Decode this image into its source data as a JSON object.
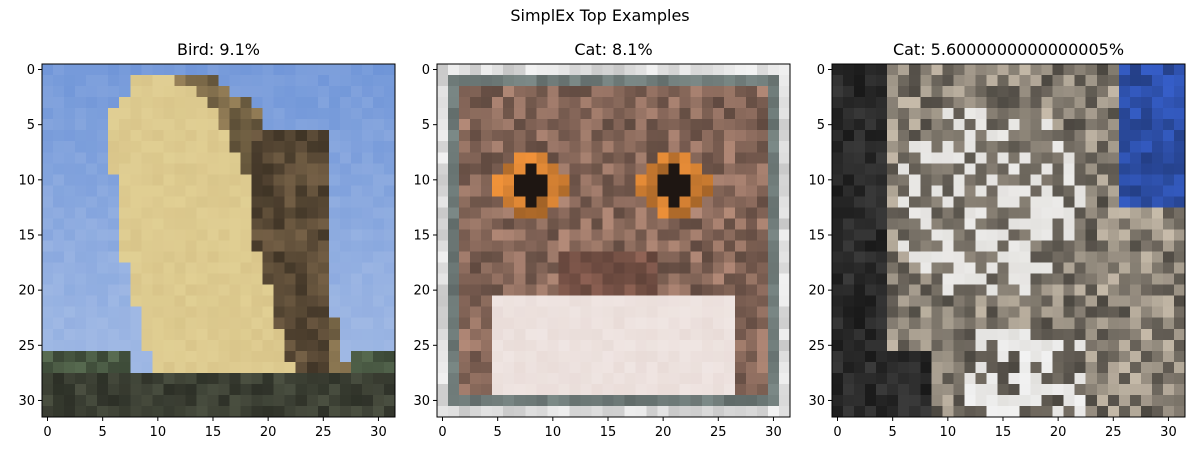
{
  "figure": {
    "suptitle": "SimplEx Top Examples"
  },
  "chart_data": [
    {
      "type": "image",
      "title": "Bird: 9.1%",
      "class_label": "Bird",
      "weight_percent": 9.1,
      "xlim": [
        -0.5,
        31.5
      ],
      "ylim": [
        31.5,
        -0.5
      ],
      "xticks": [
        0,
        5,
        10,
        15,
        20,
        25,
        30
      ],
      "yticks": [
        0,
        5,
        10,
        15,
        20,
        25,
        30
      ],
      "image_size": [
        32,
        32
      ],
      "dominant_colors": {
        "sky": "#6f95d8",
        "bird_light": "#d9c58a",
        "bird_dark": "#5a4a36",
        "ground": "#3c4034"
      }
    },
    {
      "type": "image",
      "title": "Cat: 8.1%",
      "class_label": "Cat",
      "weight_percent": 8.1,
      "xlim": [
        -0.5,
        31.5
      ],
      "ylim": [
        31.5,
        -0.5
      ],
      "xticks": [
        0,
        5,
        10,
        15,
        20,
        25,
        30
      ],
      "yticks": [
        0,
        5,
        10,
        15,
        20,
        25,
        30
      ],
      "image_size": [
        32,
        32
      ],
      "dominant_colors": {
        "frame": "#6e7a78",
        "fur": "#8a6a5c",
        "eyes": "#c97a30",
        "muzzle": "#e9dcd8",
        "outer": "#dcdcdc"
      }
    },
    {
      "type": "image",
      "title": "Cat: 5.6000000000000005%",
      "class_label": "Cat",
      "weight_percent": 5.6000000000000005,
      "xlim": [
        -0.5,
        31.5
      ],
      "ylim": [
        31.5,
        -0.5
      ],
      "xticks": [
        0,
        5,
        10,
        15,
        20,
        25,
        30
      ],
      "yticks": [
        0,
        5,
        10,
        15,
        20,
        25,
        30
      ],
      "image_size": [
        32,
        32
      ],
      "dominant_colors": {
        "background": "#2a2a2a",
        "fur": "#8a8276",
        "light_fur": "#d8d6d2",
        "sky": "#2d4fa8"
      }
    }
  ]
}
